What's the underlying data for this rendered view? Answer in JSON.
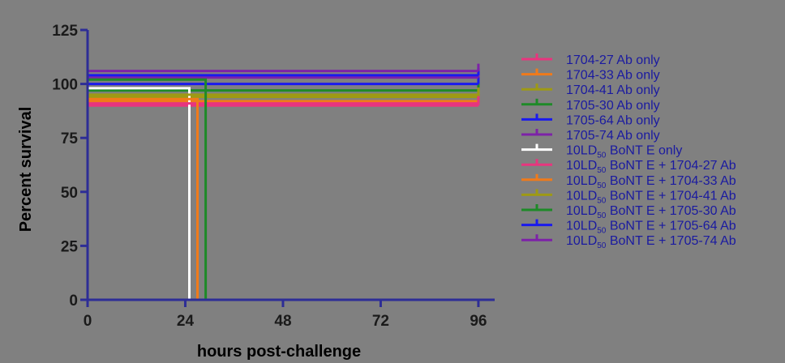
{
  "chart_data": {
    "type": "line",
    "subtype": "survival-step",
    "title": "",
    "xlabel": "hours post-challenge",
    "ylabel": "Percent survival",
    "xlim": [
      0,
      100
    ],
    "ylim": [
      0,
      125
    ],
    "x_ticks": [
      0,
      24,
      48,
      72,
      96
    ],
    "y_ticks": [
      0,
      25,
      50,
      75,
      100,
      125
    ],
    "grid": false,
    "legend_position": "right",
    "colors": {
      "background": "#808080",
      "axis": "#2d2d96",
      "tick_labels": "#1a1a1a",
      "axis_labels": "#000000",
      "legend_text": "#1a1aa0"
    },
    "series": [
      {
        "name": "1704-27 Ab only",
        "subscript": "",
        "suffix": "",
        "color": "#e8357e",
        "level": 90,
        "x": [
          0,
          96
        ],
        "y": [
          100,
          100
        ]
      },
      {
        "name": "1704-33 Ab only",
        "subscript": "",
        "suffix": "",
        "color": "#f07a1a",
        "level": 92,
        "x": [
          0,
          96
        ],
        "y": [
          100,
          100
        ]
      },
      {
        "name": "1704-41 Ab only",
        "subscript": "",
        "suffix": "",
        "color": "#9e9a14",
        "level": 94,
        "x": [
          0,
          96
        ],
        "y": [
          100,
          100
        ]
      },
      {
        "name": "1705-30 Ab only",
        "subscript": "",
        "suffix": "",
        "color": "#1e8a28",
        "level": 97,
        "x": [
          0,
          96
        ],
        "y": [
          100,
          100
        ]
      },
      {
        "name": "1705-64 Ab only",
        "subscript": "",
        "suffix": "",
        "color": "#1a1aee",
        "level": 100,
        "x": [
          0,
          96
        ],
        "y": [
          100,
          100
        ]
      },
      {
        "name": "1705-74 Ab only",
        "subscript": "",
        "suffix": "",
        "color": "#7d22a8",
        "level": 103,
        "x": [
          0,
          96
        ],
        "y": [
          100,
          100
        ]
      },
      {
        "name": "10LD",
        "subscript": "50",
        "suffix": " BoNT E only",
        "color": "#ffffff",
        "level": 98,
        "x": [
          0,
          25,
          25
        ],
        "y": [
          100,
          100,
          0
        ]
      },
      {
        "name": "10LD",
        "subscript": "50",
        "suffix": " BoNT E + 1704-27 Ab",
        "color": "#e8357e",
        "level": 91,
        "x": [
          0,
          96
        ],
        "y": [
          100,
          100
        ]
      },
      {
        "name": "10LD",
        "subscript": "50",
        "suffix": " BoNT E + 1704-33 Ab",
        "color": "#f07a1a",
        "level": 93,
        "x": [
          0,
          27,
          27
        ],
        "y": [
          100,
          100,
          0
        ]
      },
      {
        "name": "10LD",
        "subscript": "50",
        "suffix": " BoNT E + 1704-41 Ab",
        "color": "#9e9a14",
        "level": 95,
        "x": [
          0,
          96
        ],
        "y": [
          100,
          100
        ]
      },
      {
        "name": "10LD",
        "subscript": "50",
        "suffix": " BoNT E + 1705-30 Ab",
        "color": "#1e8a28",
        "level": 102,
        "x": [
          0,
          29,
          29
        ],
        "y": [
          100,
          100,
          0
        ]
      },
      {
        "name": "10LD",
        "subscript": "50",
        "suffix": " BoNT E + 1705-64 Ab",
        "color": "#1a1aee",
        "level": 104,
        "x": [
          0,
          96
        ],
        "y": [
          100,
          100
        ]
      },
      {
        "name": "10LD",
        "subscript": "50",
        "suffix": " BoNT E + 1705-74 Ab",
        "color": "#7d22a8",
        "level": 106,
        "x": [
          0,
          96
        ],
        "y": [
          100,
          100
        ]
      }
    ]
  }
}
